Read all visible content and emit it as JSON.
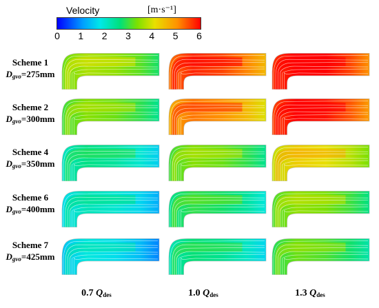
{
  "legend": {
    "title": "Velocity",
    "unit": "[m·s⁻¹]",
    "ticks": [
      "0",
      "1",
      "2",
      "3",
      "4",
      "5",
      "6"
    ]
  },
  "rows": [
    {
      "scheme": "Scheme 1",
      "diameter_symbol": "D",
      "diameter_sub": "gvo",
      "diameter_value": "=275mm",
      "levels": [
        3.6,
        5.6,
        6.0
      ]
    },
    {
      "scheme": "Scheme 2",
      "diameter_symbol": "D",
      "diameter_sub": "gvo",
      "diameter_value": "=300mm",
      "levels": [
        3.3,
        5.1,
        5.9
      ]
    },
    {
      "scheme": "Scheme 4",
      "diameter_symbol": "D",
      "diameter_sub": "gvo",
      "diameter_value": "=350mm",
      "levels": [
        2.3,
        3.3,
        4.3
      ]
    },
    {
      "scheme": "Scheme 6",
      "diameter_symbol": "D",
      "diameter_sub": "gvo",
      "diameter_value": "=400mm",
      "levels": [
        1.9,
        2.7,
        3.4
      ]
    },
    {
      "scheme": "Scheme 7",
      "diameter_symbol": "D",
      "diameter_sub": "gvo",
      "diameter_value": "=425mm",
      "levels": [
        1.6,
        2.4,
        3.1
      ]
    }
  ],
  "columns": [
    {
      "factor": "0.7",
      "symbol": "Q",
      "sub": "des"
    },
    {
      "factor": "1.0",
      "symbol": "Q",
      "sub": "des"
    },
    {
      "factor": "1.3",
      "symbol": "Q",
      "sub": "des"
    }
  ],
  "colors": {
    "scale": [
      "#0000ff",
      "#00a0ff",
      "#00e8e8",
      "#00e07a",
      "#7ee000",
      "#e8e000",
      "#ff9000",
      "#ff0000"
    ]
  }
}
